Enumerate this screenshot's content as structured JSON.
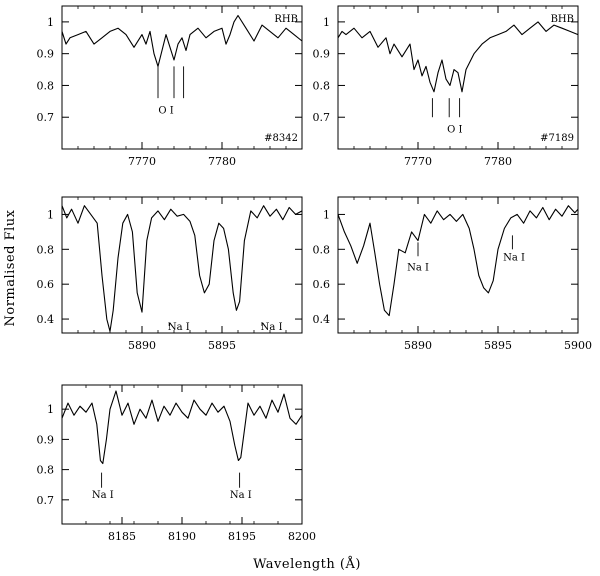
{
  "figure": {
    "ylabel": "Normalised Flux",
    "xlabel": "Wavelength (Å)"
  },
  "chart_data": [
    {
      "type": "line",
      "panel": "top-left",
      "xlim": [
        7760,
        7790
      ],
      "ylim": [
        0.6,
        1.05
      ],
      "xticks": [
        7770,
        7780
      ],
      "xtick_labels": [
        "7770",
        "7780"
      ],
      "yticks": [
        0.7,
        0.8,
        0.9,
        1.0
      ],
      "ytick_labels": [
        "0.7",
        "0.8",
        "0.9",
        "1"
      ],
      "annotations": [
        {
          "text": "RHB",
          "position": "top-right"
        },
        {
          "text": "#8342",
          "position": "bottom-right"
        },
        {
          "text": "O I",
          "line_x": [
            7772.0,
            7774.0,
            7775.2
          ],
          "tick_y": [
            0.86,
            0.76
          ],
          "label_x": 7773.0,
          "label_y": 0.725
        }
      ],
      "series": [
        {
          "x": [
            7760.0,
            7760.5,
            7761.0,
            7762.0,
            7763.0,
            7764.0,
            7765.0,
            7766.0,
            7767.0,
            7768.0,
            7769.0,
            7770.0,
            7770.5,
            7771.0,
            7771.5,
            7772.0,
            7772.5,
            7773.0,
            7773.5,
            7774.0,
            7774.5,
            7775.0,
            7775.5,
            7776.0,
            7777.0,
            7778.0,
            7779.0,
            7780.0,
            7780.5,
            7781.0,
            7781.5,
            7782.0,
            7783.0,
            7784.0,
            7785.0,
            7786.0,
            7787.0,
            7788.0,
            7789.0,
            7790.0
          ],
          "y": [
            0.97,
            0.93,
            0.95,
            0.96,
            0.97,
            0.93,
            0.95,
            0.97,
            0.98,
            0.96,
            0.92,
            0.96,
            0.93,
            0.97,
            0.9,
            0.86,
            0.91,
            0.96,
            0.92,
            0.88,
            0.93,
            0.95,
            0.91,
            0.96,
            0.98,
            0.95,
            0.97,
            0.98,
            0.93,
            0.96,
            1.0,
            1.02,
            0.98,
            0.94,
            0.99,
            0.97,
            0.95,
            0.98,
            0.96,
            0.94
          ]
        }
      ]
    },
    {
      "type": "line",
      "panel": "top-right",
      "xlim": [
        7760,
        7790
      ],
      "ylim": [
        0.6,
        1.05
      ],
      "xticks": [
        7770,
        7780
      ],
      "xtick_labels": [
        "7770",
        "7780"
      ],
      "yticks": [
        0.7,
        0.8,
        0.9,
        1.0
      ],
      "ytick_labels": [
        "0.7",
        "0.8",
        "0.9",
        "1"
      ],
      "annotations": [
        {
          "text": "BHB",
          "position": "top-right"
        },
        {
          "text": "#7189",
          "position": "bottom-right"
        },
        {
          "text": "O I",
          "line_x": [
            7771.8,
            7773.9,
            7775.2
          ],
          "tick_y": [
            0.76,
            0.7
          ],
          "label_x": 7774.6,
          "label_y": 0.665
        }
      ],
      "series": [
        {
          "x": [
            7760.0,
            7760.5,
            7761.0,
            7762.0,
            7763.0,
            7764.0,
            7765.0,
            7766.0,
            7766.5,
            7767.0,
            7768.0,
            7769.0,
            7769.5,
            7770.0,
            7770.5,
            7771.0,
            7771.5,
            7772.0,
            7772.5,
            7773.0,
            7773.5,
            7774.0,
            7774.5,
            7775.0,
            7775.5,
            7776.0,
            7777.0,
            7778.0,
            7779.0,
            7780.0,
            7781.0,
            7782.0,
            7783.0,
            7784.0,
            7785.0,
            7786.0,
            7787.0,
            7788.0,
            7789.0,
            7790.0
          ],
          "y": [
            0.95,
            0.97,
            0.96,
            0.98,
            0.95,
            0.97,
            0.92,
            0.95,
            0.9,
            0.93,
            0.89,
            0.93,
            0.85,
            0.88,
            0.83,
            0.86,
            0.81,
            0.78,
            0.84,
            0.88,
            0.82,
            0.8,
            0.85,
            0.84,
            0.78,
            0.85,
            0.9,
            0.93,
            0.95,
            0.96,
            0.97,
            0.99,
            0.96,
            0.98,
            1.0,
            0.97,
            0.99,
            0.98,
            0.97,
            0.96
          ]
        }
      ]
    },
    {
      "type": "line",
      "panel": "middle-left",
      "xlim": [
        5885,
        5900
      ],
      "ylim": [
        0.32,
        1.1
      ],
      "xticks": [
        5890,
        5895
      ],
      "xtick_labels": [
        "5890",
        "5895"
      ],
      "yticks": [
        0.4,
        0.6,
        0.8,
        1.0
      ],
      "ytick_labels": [
        "0.4",
        "0.6",
        "0.8",
        "1"
      ],
      "annotations": [
        {
          "text": "Na I",
          "line_x": 5891.7,
          "tick_y": [
            0.38,
            0.36
          ],
          "label_x": 5892.3,
          "label_y": 0.36
        },
        {
          "text": "Na I",
          "line_x": 5897.5,
          "tick_y": [
            0.38,
            0.36
          ],
          "label_x": 5898.1,
          "label_y": 0.36
        }
      ],
      "series": [
        {
          "x": [
            5885.0,
            5885.3,
            5885.6,
            5886.0,
            5886.4,
            5886.8,
            5887.2,
            5887.5,
            5887.8,
            5888.0,
            5888.2,
            5888.5,
            5888.8,
            5889.1,
            5889.4,
            5889.7,
            5890.0,
            5890.3,
            5890.6,
            5891.0,
            5891.4,
            5891.8,
            5892.2,
            5892.6,
            5893.0,
            5893.3,
            5893.6,
            5893.9,
            5894.2,
            5894.5,
            5894.8,
            5895.1,
            5895.4,
            5895.7,
            5895.9,
            5896.1,
            5896.4,
            5896.8,
            5897.2,
            5897.6,
            5898.0,
            5898.4,
            5898.8,
            5899.2,
            5899.6,
            5900.0
          ],
          "y": [
            1.05,
            0.98,
            1.03,
            0.95,
            1.05,
            1.0,
            0.95,
            0.65,
            0.4,
            0.33,
            0.45,
            0.75,
            0.95,
            1.0,
            0.9,
            0.55,
            0.44,
            0.85,
            0.98,
            1.02,
            0.97,
            1.03,
            0.99,
            1.0,
            0.96,
            0.88,
            0.65,
            0.55,
            0.6,
            0.85,
            0.95,
            0.92,
            0.8,
            0.55,
            0.45,
            0.5,
            0.85,
            1.02,
            0.98,
            1.05,
            0.99,
            1.03,
            0.97,
            1.04,
            1.0,
            1.02
          ]
        }
      ]
    },
    {
      "type": "line",
      "panel": "middle-right",
      "xlim": [
        5885,
        5900
      ],
      "ylim": [
        0.32,
        1.1
      ],
      "xticks": [
        5890,
        5895,
        5900
      ],
      "xtick_labels": [
        "5890",
        "5895",
        "5900"
      ],
      "yticks": [
        0.4,
        0.6,
        0.8,
        1.0
      ],
      "ytick_labels": [
        "0.4",
        "0.6",
        "0.8",
        "1"
      ],
      "annotations": [
        {
          "text": "Na I",
          "line_x": 5890.0,
          "tick_y": [
            0.84,
            0.76
          ],
          "label_x": 5890.0,
          "label_y": 0.7
        },
        {
          "text": "Na I",
          "line_x": 5895.9,
          "tick_y": [
            0.88,
            0.8
          ],
          "label_x": 5896.0,
          "label_y": 0.76
        }
      ],
      "series": [
        {
          "x": [
            5885.0,
            5885.4,
            5885.8,
            5886.2,
            5886.6,
            5887.0,
            5887.3,
            5887.6,
            5887.9,
            5888.2,
            5888.5,
            5888.8,
            5889.2,
            5889.6,
            5890.0,
            5890.4,
            5890.8,
            5891.2,
            5891.6,
            5892.0,
            5892.4,
            5892.8,
            5893.2,
            5893.5,
            5893.8,
            5894.1,
            5894.4,
            5894.7,
            5895.0,
            5895.4,
            5895.8,
            5896.2,
            5896.6,
            5897.0,
            5897.4,
            5897.8,
            5898.2,
            5898.6,
            5899.0,
            5899.4,
            5899.8,
            5900.0
          ],
          "y": [
            1.0,
            0.9,
            0.82,
            0.72,
            0.82,
            0.95,
            0.78,
            0.6,
            0.45,
            0.42,
            0.6,
            0.8,
            0.78,
            0.9,
            0.85,
            1.0,
            0.95,
            1.02,
            0.97,
            1.0,
            0.96,
            1.0,
            0.92,
            0.8,
            0.65,
            0.58,
            0.55,
            0.62,
            0.8,
            0.92,
            0.98,
            1.0,
            0.95,
            1.02,
            0.98,
            1.04,
            0.97,
            1.03,
            0.99,
            1.05,
            1.01,
            1.03
          ]
        }
      ]
    },
    {
      "type": "line",
      "panel": "bottom-left",
      "xlim": [
        8180,
        8200
      ],
      "ylim": [
        0.62,
        1.08
      ],
      "xticks": [
        8185,
        8190,
        8195,
        8200
      ],
      "xtick_labels": [
        "8185",
        "8190",
        "8195",
        "8200"
      ],
      "yticks": [
        0.7,
        0.8,
        0.9,
        1.0
      ],
      "ytick_labels": [
        "0.7",
        "0.8",
        "0.9",
        "1"
      ],
      "annotations": [
        {
          "text": "Na I",
          "line_x": 8183.3,
          "tick_y": [
            0.79,
            0.74
          ],
          "label_x": 8183.4,
          "label_y": 0.72
        },
        {
          "text": "Na I",
          "line_x": 8194.8,
          "tick_y": [
            0.79,
            0.74
          ],
          "label_x": 8194.9,
          "label_y": 0.72
        }
      ],
      "series": [
        {
          "x": [
            8180.0,
            8180.5,
            8181.0,
            8181.5,
            8182.0,
            8182.5,
            8182.9,
            8183.2,
            8183.4,
            8183.7,
            8184.0,
            8184.5,
            8185.0,
            8185.5,
            8186.0,
            8186.5,
            8187.0,
            8187.5,
            8188.0,
            8188.5,
            8189.0,
            8189.5,
            8190.0,
            8190.5,
            8191.0,
            8191.5,
            8192.0,
            8192.5,
            8193.0,
            8193.5,
            8194.0,
            8194.4,
            8194.7,
            8194.9,
            8195.2,
            8195.5,
            8196.0,
            8196.5,
            8197.0,
            8197.5,
            8198.0,
            8198.5,
            8199.0,
            8199.5,
            8200.0
          ],
          "y": [
            0.97,
            1.02,
            0.98,
            1.01,
            0.99,
            1.02,
            0.95,
            0.83,
            0.82,
            0.9,
            1.0,
            1.06,
            0.98,
            1.02,
            0.95,
            1.0,
            0.97,
            1.03,
            0.96,
            1.01,
            0.98,
            1.02,
            0.99,
            0.97,
            1.03,
            1.0,
            0.98,
            1.02,
            0.99,
            1.01,
            0.96,
            0.88,
            0.83,
            0.84,
            0.93,
            1.02,
            0.98,
            1.01,
            0.97,
            1.03,
            0.99,
            1.05,
            0.97,
            0.95,
            0.98
          ]
        }
      ]
    }
  ]
}
